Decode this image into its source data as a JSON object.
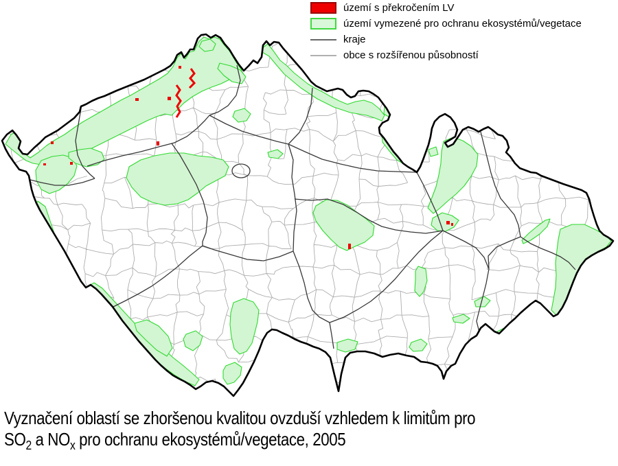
{
  "title": "Vyznačení oblastí se zhoršenou kvalitou ovzduší, 2005",
  "legend": {
    "items": [
      {
        "id": "exceedance",
        "type": "area",
        "label": "území s překročením LV",
        "fill": "#ee0000",
        "border": "#990000"
      },
      {
        "id": "protected",
        "type": "area",
        "label": "území vymezené pro ochranu ekosystémů/vegetace",
        "fill": "#d9f7d9",
        "border": "#3fd93f"
      },
      {
        "id": "kraje",
        "type": "line",
        "label": "kraje",
        "color": "#666666"
      },
      {
        "id": "obce",
        "type": "line",
        "label": "obce s rozšířenou působností",
        "color": "#b0b0b0"
      }
    ]
  },
  "caption": {
    "line1": "Vyznačení oblastí se zhoršenou kvalitou ovzduší vzhledem k limitům pro",
    "line2": {
      "p1": "SO",
      "sub1": "2",
      "p2": " a NO",
      "sub2": "x",
      "p3": " pro ochranu ekosystémů/vegetace, 2005"
    }
  },
  "map": {
    "region": "Česká republika",
    "year": "2005",
    "colors": {
      "country_border": "#000000",
      "kraje_line": "#383838",
      "obce_line": "#adadad",
      "protected_fill": "#d2f5d2",
      "protected_border": "#2eda2e",
      "exceedance_red": "#ee0000",
      "background": "#ffffff"
    }
  }
}
